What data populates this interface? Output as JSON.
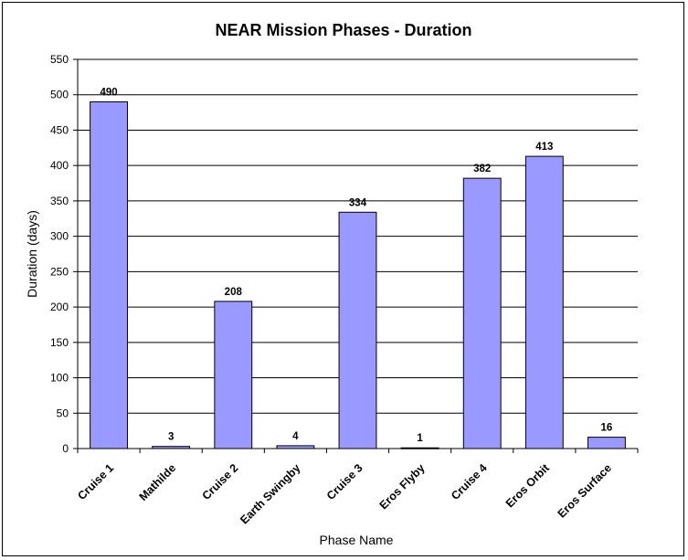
{
  "chart_data": {
    "type": "bar",
    "title": "NEAR Mission Phases - Duration",
    "xlabel": "Phase Name",
    "ylabel": "Duration (days)",
    "ylim": [
      0,
      550
    ],
    "yticks": [
      0,
      50,
      100,
      150,
      200,
      250,
      300,
      350,
      400,
      450,
      500,
      550
    ],
    "grid": true,
    "categories": [
      "Cruise 1",
      "Mathilde",
      "Cruise 2",
      "Earth Swingby",
      "Cruise 3",
      "Eros Flyby",
      "Cruise 4",
      "Eros Orbit",
      "Eros Surface"
    ],
    "values": [
      490,
      3,
      208,
      4,
      334,
      1,
      382,
      413,
      16
    ],
    "data_labels": [
      "490",
      "3",
      "208",
      "4",
      "334",
      "1",
      "382",
      "413",
      "16"
    ],
    "bar_color": "#9999ff",
    "legend": "none"
  }
}
